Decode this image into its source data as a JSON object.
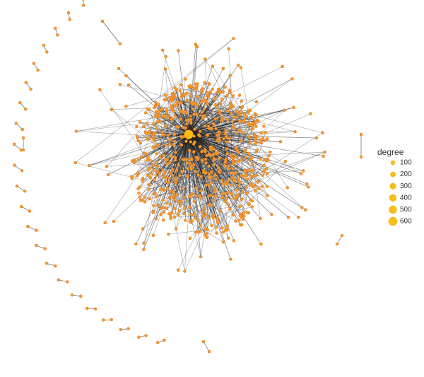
{
  "chart_data": {
    "type": "network",
    "legend": {
      "title": "degree",
      "values": [
        100,
        200,
        300,
        400,
        500,
        600
      ],
      "color": "#f7be16"
    },
    "node_color": "#f79a2e",
    "edge_color": "#222222"
  }
}
